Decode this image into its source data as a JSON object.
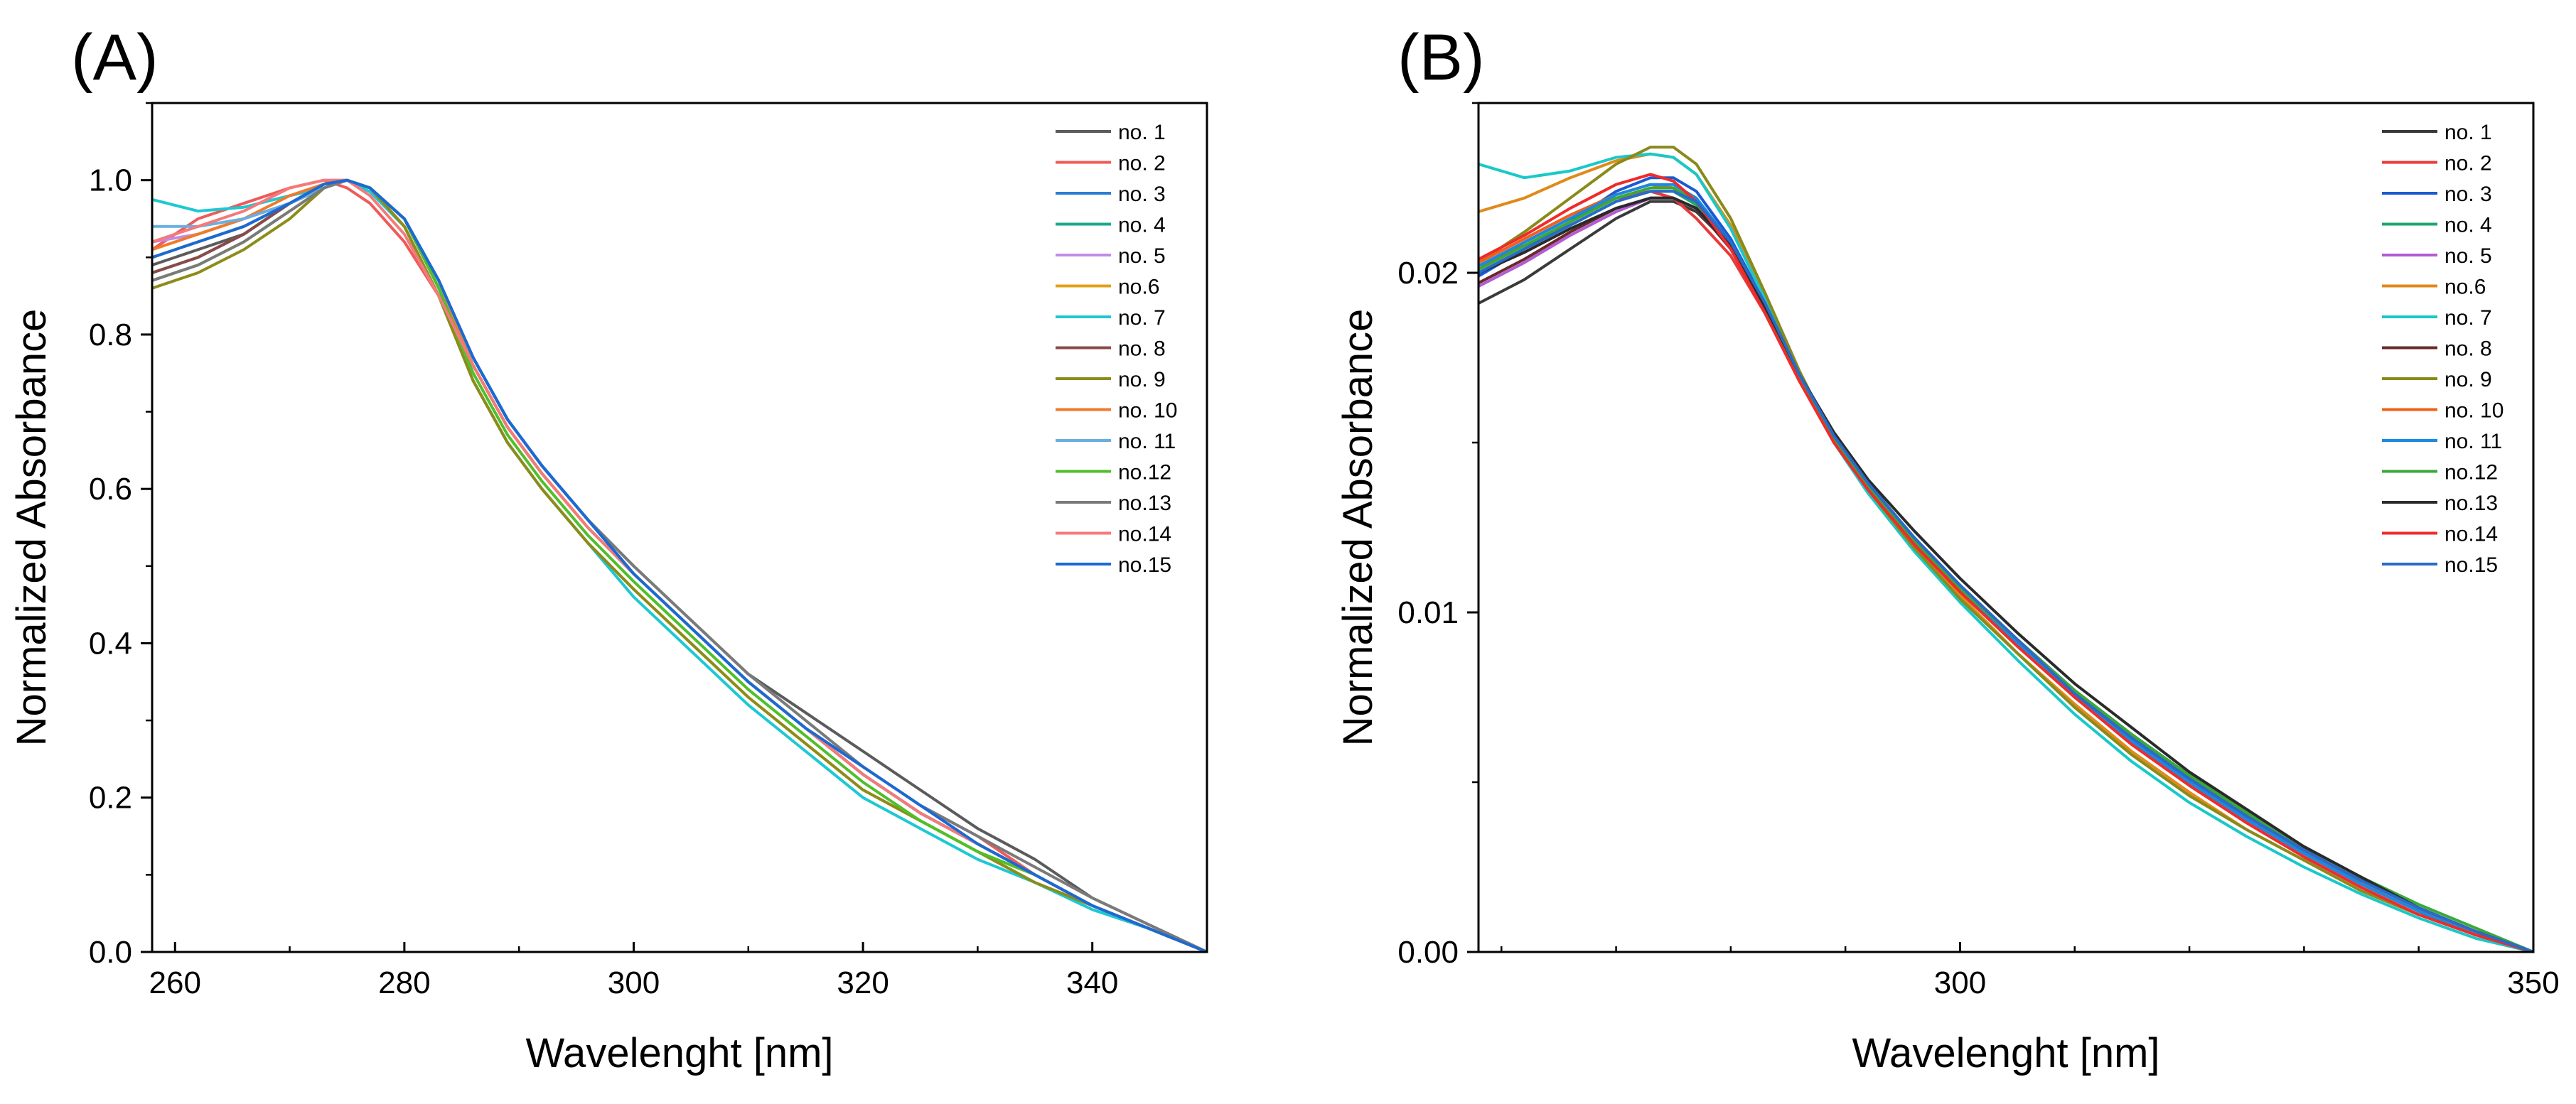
{
  "chart_data": [
    {
      "panel": "(A)",
      "type": "line",
      "xlabel": "Wavelenght [nm]",
      "ylabel": "Normalized Absorbance",
      "xlim": [
        258,
        350
      ],
      "ylim": [
        0,
        1.1
      ],
      "xticks": [
        260,
        280,
        300,
        320,
        340
      ],
      "yticks": [
        0.0,
        0.2,
        0.4,
        0.6,
        0.8,
        1.0
      ],
      "ytick_labels": [
        "0.0",
        "0.2",
        "0.4",
        "0.6",
        "0.8",
        "1.0"
      ],
      "legend_position": "top-right",
      "x": [
        258,
        262,
        266,
        270,
        273,
        275,
        277,
        280,
        283,
        286,
        289,
        292,
        296,
        300,
        305,
        310,
        315,
        320,
        325,
        330,
        335,
        340,
        345,
        350
      ],
      "series": [
        {
          "name": "no. 1",
          "color": "#5b5b5b",
          "values": [
            0.89,
            0.91,
            0.93,
            0.97,
            0.995,
            1.0,
            0.99,
            0.95,
            0.87,
            0.77,
            0.69,
            0.63,
            0.56,
            0.5,
            0.43,
            0.36,
            0.31,
            0.26,
            0.21,
            0.16,
            0.12,
            0.07,
            0.035,
            0.0
          ]
        },
        {
          "name": "no. 2",
          "color": "#f05a5a",
          "values": [
            0.91,
            0.95,
            0.97,
            0.99,
            1.0,
            0.99,
            0.97,
            0.92,
            0.85,
            0.76,
            0.68,
            0.62,
            0.55,
            0.49,
            0.42,
            0.35,
            0.29,
            0.24,
            0.19,
            0.15,
            0.1,
            0.06,
            0.03,
            0.0
          ]
        },
        {
          "name": "no. 3",
          "color": "#2a7fd4",
          "values": [
            0.9,
            0.92,
            0.94,
            0.97,
            0.995,
            1.0,
            0.99,
            0.95,
            0.87,
            0.77,
            0.69,
            0.63,
            0.56,
            0.49,
            0.42,
            0.35,
            0.29,
            0.23,
            0.18,
            0.14,
            0.1,
            0.06,
            0.03,
            0.0
          ]
        },
        {
          "name": "no. 4",
          "color": "#1aa88c",
          "values": [
            0.88,
            0.9,
            0.93,
            0.97,
            0.995,
            1.0,
            0.99,
            0.95,
            0.86,
            0.76,
            0.68,
            0.62,
            0.55,
            0.49,
            0.42,
            0.35,
            0.29,
            0.23,
            0.18,
            0.14,
            0.1,
            0.06,
            0.03,
            0.0
          ]
        },
        {
          "name": "no. 5",
          "color": "#c28ae6",
          "values": [
            0.92,
            0.93,
            0.95,
            0.97,
            0.99,
            1.0,
            0.99,
            0.95,
            0.87,
            0.77,
            0.69,
            0.63,
            0.56,
            0.49,
            0.42,
            0.35,
            0.29,
            0.23,
            0.18,
            0.14,
            0.1,
            0.06,
            0.03,
            0.0
          ]
        },
        {
          "name": "no.6",
          "color": "#e0a01c",
          "values": [
            0.9,
            0.92,
            0.94,
            0.97,
            0.99,
            1.0,
            0.99,
            0.94,
            0.85,
            0.74,
            0.66,
            0.6,
            0.53,
            0.47,
            0.4,
            0.33,
            0.27,
            0.21,
            0.17,
            0.13,
            0.09,
            0.06,
            0.03,
            0.0
          ]
        },
        {
          "name": "no. 7",
          "color": "#1ec8d2",
          "values": [
            0.975,
            0.96,
            0.965,
            0.98,
            0.99,
            1.0,
            0.985,
            0.94,
            0.85,
            0.74,
            0.66,
            0.6,
            0.53,
            0.46,
            0.39,
            0.32,
            0.26,
            0.2,
            0.16,
            0.12,
            0.09,
            0.055,
            0.03,
            0.0
          ]
        },
        {
          "name": "no. 8",
          "color": "#8b4a4a",
          "values": [
            0.88,
            0.9,
            0.93,
            0.97,
            0.995,
            1.0,
            0.99,
            0.95,
            0.87,
            0.77,
            0.69,
            0.63,
            0.56,
            0.49,
            0.42,
            0.35,
            0.29,
            0.23,
            0.18,
            0.14,
            0.1,
            0.06,
            0.03,
            0.0
          ]
        },
        {
          "name": "no. 9",
          "color": "#8c8c1a",
          "values": [
            0.86,
            0.88,
            0.91,
            0.95,
            0.99,
            1.0,
            0.99,
            0.94,
            0.85,
            0.74,
            0.66,
            0.6,
            0.53,
            0.47,
            0.4,
            0.33,
            0.27,
            0.21,
            0.17,
            0.13,
            0.09,
            0.06,
            0.03,
            0.0
          ]
        },
        {
          "name": "no. 10",
          "color": "#f07a2a",
          "values": [
            0.91,
            0.93,
            0.95,
            0.98,
            0.995,
            1.0,
            0.99,
            0.95,
            0.86,
            0.76,
            0.68,
            0.62,
            0.55,
            0.49,
            0.42,
            0.35,
            0.29,
            0.23,
            0.18,
            0.14,
            0.1,
            0.06,
            0.03,
            0.0
          ]
        },
        {
          "name": "no. 11",
          "color": "#6aaee0",
          "values": [
            0.94,
            0.94,
            0.95,
            0.97,
            0.99,
            1.0,
            0.99,
            0.95,
            0.87,
            0.77,
            0.69,
            0.63,
            0.56,
            0.49,
            0.42,
            0.35,
            0.29,
            0.23,
            0.18,
            0.14,
            0.1,
            0.06,
            0.03,
            0.0
          ]
        },
        {
          "name": "no.12",
          "color": "#4fbf2a",
          "values": [
            0.87,
            0.89,
            0.92,
            0.96,
            0.99,
            1.0,
            0.99,
            0.95,
            0.86,
            0.75,
            0.67,
            0.61,
            0.54,
            0.48,
            0.41,
            0.34,
            0.28,
            0.22,
            0.17,
            0.13,
            0.1,
            0.06,
            0.03,
            0.0
          ]
        },
        {
          "name": "no.13",
          "color": "#7a7a7a",
          "values": [
            0.87,
            0.89,
            0.92,
            0.96,
            0.99,
            1.0,
            0.99,
            0.95,
            0.87,
            0.77,
            0.69,
            0.63,
            0.56,
            0.5,
            0.43,
            0.36,
            0.3,
            0.24,
            0.19,
            0.15,
            0.11,
            0.07,
            0.035,
            0.0
          ]
        },
        {
          "name": "no.14",
          "color": "#f47a7a",
          "values": [
            0.92,
            0.94,
            0.96,
            0.99,
            1.0,
            1.0,
            0.98,
            0.93,
            0.85,
            0.76,
            0.68,
            0.62,
            0.55,
            0.49,
            0.42,
            0.35,
            0.29,
            0.23,
            0.18,
            0.14,
            0.1,
            0.06,
            0.03,
            0.0
          ]
        },
        {
          "name": "no.15",
          "color": "#1a6ad4",
          "values": [
            0.9,
            0.92,
            0.94,
            0.97,
            0.995,
            1.0,
            0.99,
            0.95,
            0.87,
            0.77,
            0.69,
            0.63,
            0.56,
            0.49,
            0.42,
            0.35,
            0.29,
            0.24,
            0.19,
            0.14,
            0.1,
            0.06,
            0.03,
            0.0
          ]
        }
      ]
    },
    {
      "panel": "(B)",
      "type": "line",
      "xlabel": "Wavelenght [nm]",
      "ylabel": "Normalized Absorbance",
      "xlim": [
        258,
        350
      ],
      "ylim": [
        0,
        0.025
      ],
      "xticks": [
        300,
        350
      ],
      "yticks": [
        0.0,
        0.01,
        0.02
      ],
      "ytick_labels": [
        "0.00",
        "0.01",
        "0.02"
      ],
      "legend_position": "top-right",
      "x": [
        258,
        262,
        266,
        270,
        273,
        275,
        277,
        280,
        283,
        286,
        289,
        292,
        296,
        300,
        305,
        310,
        315,
        320,
        325,
        330,
        335,
        340,
        345,
        350
      ],
      "series": [
        {
          "name": "no. 1",
          "color": "#3a3a3a",
          "values": [
            0.0191,
            0.0198,
            0.0207,
            0.0216,
            0.0221,
            0.0221,
            0.0218,
            0.0208,
            0.019,
            0.017,
            0.0152,
            0.0138,
            0.0122,
            0.0108,
            0.0092,
            0.0077,
            0.0064,
            0.0052,
            0.0041,
            0.0031,
            0.0022,
            0.0013,
            0.0006,
            0.0
          ]
        },
        {
          "name": "no. 2",
          "color": "#e83a3a",
          "values": [
            0.0201,
            0.0209,
            0.0216,
            0.0222,
            0.0224,
            0.0222,
            0.0216,
            0.0205,
            0.0188,
            0.0168,
            0.0151,
            0.0137,
            0.0121,
            0.0107,
            0.0091,
            0.0075,
            0.0062,
            0.005,
            0.0039,
            0.0029,
            0.002,
            0.0012,
            0.0005,
            0.0
          ]
        },
        {
          "name": "no. 3",
          "color": "#1a5ad4",
          "values": [
            0.0199,
            0.0207,
            0.0215,
            0.0224,
            0.0228,
            0.0228,
            0.0224,
            0.021,
            0.0191,
            0.017,
            0.0152,
            0.0138,
            0.0122,
            0.0108,
            0.0091,
            0.0076,
            0.0062,
            0.005,
            0.0039,
            0.0029,
            0.002,
            0.0012,
            0.0005,
            0.0
          ]
        },
        {
          "name": "no. 4",
          "color": "#1aa86a",
          "values": [
            0.02,
            0.0207,
            0.0214,
            0.0221,
            0.0224,
            0.0224,
            0.022,
            0.0208,
            0.019,
            0.0169,
            0.0151,
            0.0137,
            0.0121,
            0.0107,
            0.0091,
            0.0075,
            0.0062,
            0.005,
            0.0039,
            0.0029,
            0.002,
            0.0012,
            0.0005,
            0.0
          ]
        },
        {
          "name": "no. 5",
          "color": "#b45ad4",
          "values": [
            0.0196,
            0.0203,
            0.0211,
            0.0218,
            0.0222,
            0.0222,
            0.0219,
            0.0207,
            0.0189,
            0.0169,
            0.0151,
            0.0137,
            0.0121,
            0.0107,
            0.0091,
            0.0075,
            0.0062,
            0.005,
            0.0039,
            0.0029,
            0.002,
            0.0012,
            0.0005,
            0.0
          ]
        },
        {
          "name": "no.6",
          "color": "#e08a1a",
          "values": [
            0.0218,
            0.0222,
            0.0228,
            0.0233,
            0.0235,
            0.0234,
            0.0229,
            0.0214,
            0.0193,
            0.017,
            0.0151,
            0.0136,
            0.0119,
            0.0105,
            0.0088,
            0.0073,
            0.0059,
            0.0047,
            0.0036,
            0.0027,
            0.0018,
            0.0011,
            0.0005,
            0.0
          ]
        },
        {
          "name": "no. 7",
          "color": "#1ac8c8",
          "values": [
            0.0232,
            0.0228,
            0.023,
            0.0234,
            0.0235,
            0.0234,
            0.0229,
            0.0213,
            0.0192,
            0.0169,
            0.015,
            0.0135,
            0.0118,
            0.0103,
            0.0086,
            0.007,
            0.0056,
            0.0044,
            0.0034,
            0.0025,
            0.0017,
            0.001,
            0.0004,
            0.0
          ]
        },
        {
          "name": "no. 8",
          "color": "#6a2a2a",
          "values": [
            0.0197,
            0.0204,
            0.0212,
            0.0219,
            0.0222,
            0.0222,
            0.0219,
            0.0207,
            0.0189,
            0.0169,
            0.0151,
            0.0137,
            0.0121,
            0.0107,
            0.0091,
            0.0076,
            0.0063,
            0.0051,
            0.004,
            0.003,
            0.0021,
            0.0013,
            0.0006,
            0.0
          ]
        },
        {
          "name": "no. 9",
          "color": "#8a8a1a",
          "values": [
            0.0203,
            0.0212,
            0.0222,
            0.0232,
            0.0237,
            0.0237,
            0.0232,
            0.0216,
            0.0194,
            0.0171,
            0.0151,
            0.0136,
            0.0119,
            0.0104,
            0.0088,
            0.0072,
            0.0058,
            0.0046,
            0.0036,
            0.0027,
            0.0018,
            0.0011,
            0.0005,
            0.0
          ]
        },
        {
          "name": "no. 10",
          "color": "#f0601a",
          "values": [
            0.0203,
            0.021,
            0.0217,
            0.0223,
            0.0226,
            0.0225,
            0.0221,
            0.0208,
            0.019,
            0.0169,
            0.0151,
            0.0137,
            0.0121,
            0.0107,
            0.0091,
            0.0075,
            0.0062,
            0.005,
            0.0039,
            0.0029,
            0.002,
            0.0012,
            0.0005,
            0.0
          ]
        },
        {
          "name": "no. 11",
          "color": "#1a8ae0",
          "values": [
            0.0202,
            0.0209,
            0.0216,
            0.0223,
            0.0226,
            0.0226,
            0.0222,
            0.0209,
            0.019,
            0.0169,
            0.0151,
            0.0137,
            0.0121,
            0.0107,
            0.0091,
            0.0075,
            0.0062,
            0.005,
            0.0039,
            0.0029,
            0.002,
            0.0012,
            0.0005,
            0.0
          ]
        },
        {
          "name": "no.12",
          "color": "#3aa83a",
          "values": [
            0.0201,
            0.0208,
            0.0215,
            0.0222,
            0.0225,
            0.0225,
            0.0221,
            0.0208,
            0.019,
            0.0169,
            0.0151,
            0.0137,
            0.0121,
            0.0107,
            0.0092,
            0.0077,
            0.0064,
            0.0052,
            0.0041,
            0.0031,
            0.0022,
            0.0014,
            0.0007,
            0.0
          ]
        },
        {
          "name": "no.13",
          "color": "#2a2a2a",
          "values": [
            0.02,
            0.0206,
            0.0213,
            0.0219,
            0.0222,
            0.0222,
            0.0219,
            0.0208,
            0.019,
            0.017,
            0.0153,
            0.0139,
            0.0124,
            0.011,
            0.0094,
            0.0079,
            0.0066,
            0.0053,
            0.0042,
            0.0031,
            0.0022,
            0.0013,
            0.0006,
            0.0
          ]
        },
        {
          "name": "no.14",
          "color": "#f02a2a",
          "values": [
            0.0204,
            0.0211,
            0.0219,
            0.0226,
            0.0229,
            0.0227,
            0.0221,
            0.0207,
            0.0188,
            0.0168,
            0.015,
            0.0136,
            0.012,
            0.0106,
            0.009,
            0.0075,
            0.0061,
            0.0049,
            0.0038,
            0.0028,
            0.0019,
            0.0011,
            0.0005,
            0.0
          ]
        },
        {
          "name": "no.15",
          "color": "#2a6ac8",
          "values": [
            0.02,
            0.0207,
            0.0214,
            0.0221,
            0.0224,
            0.0224,
            0.0221,
            0.0209,
            0.0191,
            0.017,
            0.0152,
            0.0138,
            0.0122,
            0.0108,
            0.0092,
            0.0076,
            0.0063,
            0.0051,
            0.004,
            0.003,
            0.0021,
            0.0013,
            0.0006,
            0.0
          ]
        }
      ]
    }
  ]
}
